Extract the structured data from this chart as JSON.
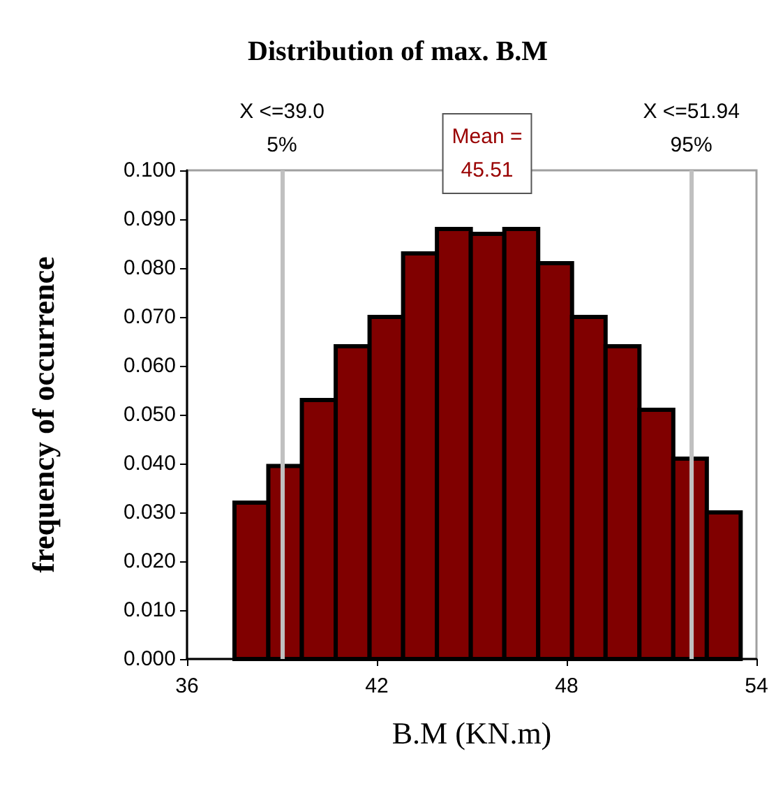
{
  "chart_data": {
    "type": "histogram",
    "title": "Distribution of max. B.M",
    "xlabel": "B.M (KN.m)",
    "ylabel": "frequency of occurrence",
    "bins": [
      37.5,
      38.57,
      39.63,
      40.7,
      41.77,
      42.83,
      43.9,
      44.97,
      46.03,
      47.1,
      48.17,
      49.23,
      50.3,
      51.37,
      52.43,
      53.5
    ],
    "values": [
      0.032,
      0.0395,
      0.053,
      0.064,
      0.07,
      0.083,
      0.088,
      0.087,
      0.088,
      0.081,
      0.07,
      0.064,
      0.051,
      0.041,
      0.03
    ],
    "color": "#800000",
    "xlim": [
      36,
      54
    ],
    "xticks": [
      36,
      42,
      48,
      54
    ],
    "ylim": [
      0,
      0.1
    ],
    "yticks": [
      {
        "value": 0,
        "label": "0.000"
      },
      {
        "value": 0.01,
        "label": "0.010"
      },
      {
        "value": 0.02,
        "label": "0.020"
      },
      {
        "value": 0.03,
        "label": "0.030"
      },
      {
        "value": 0.04,
        "label": "0.040"
      },
      {
        "value": 0.05,
        "label": "0.050"
      },
      {
        "value": 0.06,
        "label": "0.060"
      },
      {
        "value": 0.07,
        "label": "0.070"
      },
      {
        "value": 0.08,
        "label": "0.080"
      },
      {
        "value": 0.09,
        "label": "0.090"
      },
      {
        "value": 0.1,
        "label": "0.100"
      }
    ],
    "ref_lines": [
      {
        "axis": "x",
        "value": 39.0,
        "label": "X <=39.0\n5%",
        "color": "#c0c0c0"
      },
      {
        "axis": "x",
        "value": 51.94,
        "label": "X <=51.94\n95%",
        "color": "#c0c0c0"
      }
    ],
    "annotations": [
      "Mean =\n45.51"
    ],
    "grid": false
  }
}
